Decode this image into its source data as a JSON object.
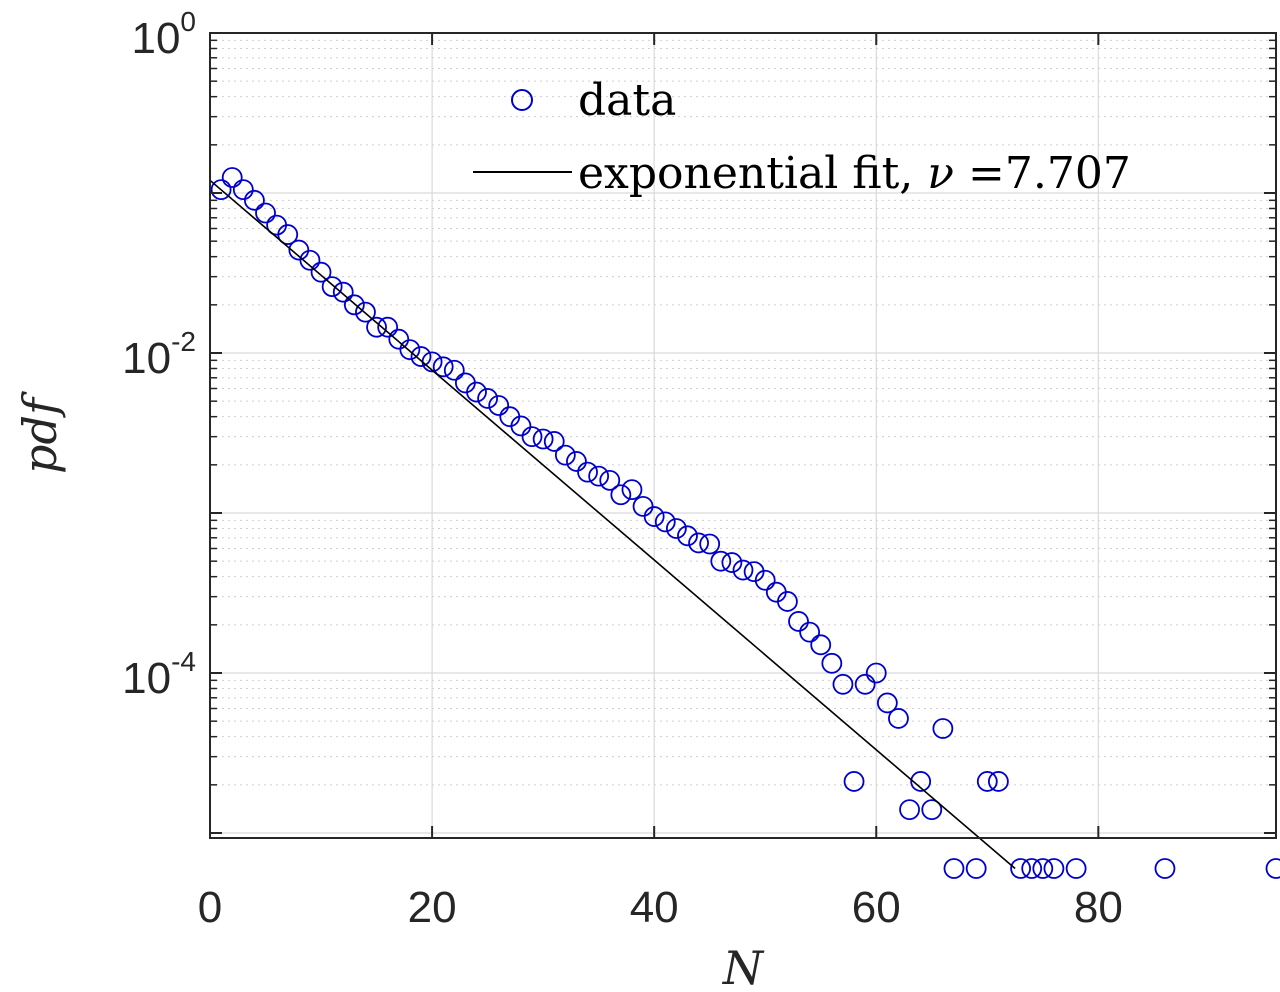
{
  "chart_data": {
    "type": "scatter",
    "xlabel": "N",
    "ylabel": "pdf",
    "xlim": [
      0,
      96
    ],
    "ylim": [
      6e-06,
      1
    ],
    "yscale": "log",
    "grid": true,
    "minor_grid": true,
    "legend_position": "top-right",
    "x_ticks": [
      {
        "value": 0,
        "label": "0"
      },
      {
        "value": 20,
        "label": "20"
      },
      {
        "value": 40,
        "label": "40"
      },
      {
        "value": 60,
        "label": "60"
      },
      {
        "value": 80,
        "label": "80"
      }
    ],
    "y_ticks": [
      {
        "value": 1,
        "base": "10",
        "exp": "0"
      },
      {
        "value": 0.01,
        "base": "10",
        "exp": "-2"
      },
      {
        "value": 0.0001,
        "base": "10",
        "exp": "-4"
      }
    ],
    "series": [
      {
        "name": "data",
        "kind": "scatter",
        "color": "#0000cd",
        "x": [
          1,
          2,
          3,
          4,
          5,
          6,
          7,
          8,
          9,
          10,
          11,
          12,
          13,
          14,
          15,
          16,
          17,
          18,
          19,
          20,
          21,
          22,
          23,
          24,
          25,
          26,
          27,
          28,
          29,
          30,
          31,
          32,
          33,
          34,
          35,
          36,
          37,
          38,
          39,
          40,
          41,
          42,
          43,
          44,
          45,
          46,
          47,
          48,
          49,
          50,
          51,
          52,
          53,
          54,
          55,
          56,
          57,
          58,
          59,
          60,
          61,
          62,
          63,
          64,
          65,
          66,
          67,
          69,
          70,
          71,
          73,
          74,
          75,
          76,
          78,
          86,
          96
        ],
        "y": [
          0.105,
          0.125,
          0.105,
          0.09,
          0.075,
          0.063,
          0.055,
          0.044,
          0.038,
          0.032,
          0.026,
          0.024,
          0.02,
          0.018,
          0.0145,
          0.0145,
          0.0122,
          0.0105,
          0.0095,
          0.0088,
          0.0082,
          0.0078,
          0.0065,
          0.0057,
          0.0052,
          0.0047,
          0.004,
          0.0035,
          0.003,
          0.0029,
          0.0028,
          0.0023,
          0.0021,
          0.0018,
          0.0017,
          0.0016,
          0.0013,
          0.0014,
          0.0011,
          0.00095,
          0.00088,
          0.0008,
          0.00072,
          0.00065,
          0.00064,
          0.0005,
          0.00049,
          0.00044,
          0.00043,
          0.00038,
          0.00032,
          0.00028,
          0.00021,
          0.00018,
          0.00015,
          0.000115,
          8.5e-05,
          2.1e-05,
          8.5e-05,
          0.0001,
          6.5e-05,
          5.2e-05,
          1.4e-05,
          2.1e-05,
          1.4e-05,
          4.5e-05,
          6e-06,
          6e-06,
          2.1e-05,
          2.1e-05,
          6e-06,
          6e-06,
          6e-06,
          6e-06,
          6e-06,
          6e-06,
          6e-06
        ]
      },
      {
        "name": "exponential fit, ν =7.707",
        "legend_prefix": "exponential fit, ",
        "legend_symbol": "ν",
        "legend_suffix": " =7.707",
        "kind": "line",
        "color": "#000000",
        "x": [
          0,
          72.5
        ],
        "y": [
          0.12,
          6e-06
        ]
      }
    ]
  }
}
